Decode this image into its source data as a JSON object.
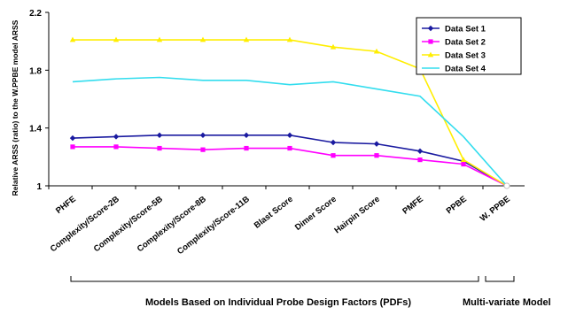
{
  "chart_data": {
    "type": "line",
    "title": "",
    "ylabel": "Relative ARSS (ratio) to the W.PPBE model ARSS",
    "xlabel": "",
    "ylim": [
      1,
      2.2
    ],
    "yticks": [
      "1",
      "1.4",
      "1.8",
      "2.2"
    ],
    "grid": false,
    "legend_position": "top-right",
    "categories": [
      "PHFE",
      "Complexity/Score-2B",
      "Complexity/Score-5B",
      "Complexity/Score-8B",
      "Complexity/Score-11B",
      "Blast Score",
      "Dimer Score",
      "Hairpin Score",
      "PMFE",
      "PPBE",
      "W. PPBE"
    ],
    "series": [
      {
        "name": "Data Set 1",
        "color": "#1a1aa0",
        "marker": "diamond",
        "values": [
          1.33,
          1.34,
          1.35,
          1.35,
          1.35,
          1.35,
          1.3,
          1.29,
          1.24,
          1.17,
          1.0
        ]
      },
      {
        "name": "Data Set 2",
        "color": "#ff00ff",
        "marker": "square",
        "values": [
          1.27,
          1.27,
          1.26,
          1.25,
          1.26,
          1.26,
          1.21,
          1.21,
          1.18,
          1.15,
          1.0
        ]
      },
      {
        "name": "Data Set 3",
        "color": "#ffee00",
        "marker": "triangle",
        "values": [
          2.01,
          2.01,
          2.01,
          2.01,
          2.01,
          2.01,
          1.96,
          1.93,
          1.81,
          1.18,
          1.0
        ]
      },
      {
        "name": "Data Set 4",
        "color": "#33ddee",
        "marker": "none",
        "values": [
          1.72,
          1.74,
          1.75,
          1.73,
          1.73,
          1.7,
          1.72,
          1.67,
          1.62,
          1.34,
          1.0
        ]
      }
    ],
    "group_labels": [
      {
        "text": "Models Based on Individual Probe Design Factors (PDFs)"
      },
      {
        "text": "Multi-variate Model"
      }
    ]
  }
}
